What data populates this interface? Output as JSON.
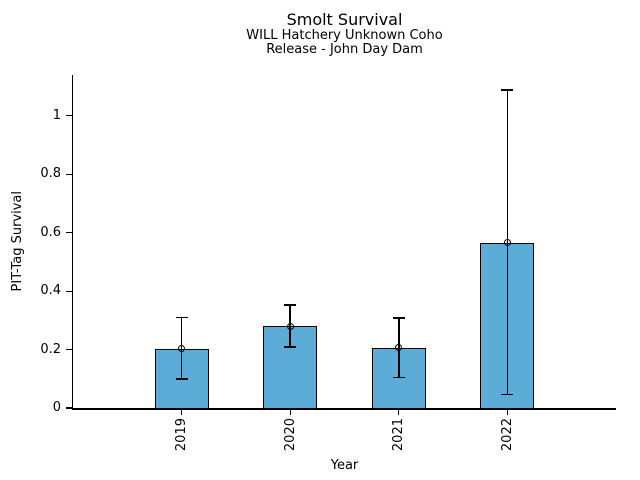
{
  "header": {
    "title": "Smolt Survival",
    "subtitle1": "WILL Hatchery Unknown Coho",
    "subtitle2": "Release - John Day Dam"
  },
  "chart_data": {
    "type": "bar",
    "title": "Smolt Survival",
    "subtitle": [
      "WILL Hatchery Unknown Coho",
      "Release - John Day Dam"
    ],
    "xlabel": "Year",
    "ylabel": "PIT-Tag Survival",
    "categories": [
      "2019",
      "2020",
      "2021",
      "2022"
    ],
    "series": [
      {
        "name": "PIT-Tag Survival",
        "values": [
          0.203,
          0.28,
          0.206,
          0.565
        ],
        "error_low": [
          0.1,
          0.209,
          0.105,
          0.046
        ],
        "error_high": [
          0.31,
          0.353,
          0.308,
          1.088
        ]
      }
    ],
    "yticks": [
      0,
      0.2,
      0.4,
      0.6,
      0.8,
      1
    ],
    "ytick_labels": [
      "0",
      "0.2",
      "0.4",
      "0.6",
      "0.8",
      "1"
    ],
    "ylim": [
      0,
      1.14
    ],
    "grid": false,
    "legend_position": "none",
    "bar_color": "#5BACD6",
    "bar_edge_color": "#000000",
    "error_color": "#000000",
    "marker": "open-circle",
    "marker_color": "#000000"
  }
}
